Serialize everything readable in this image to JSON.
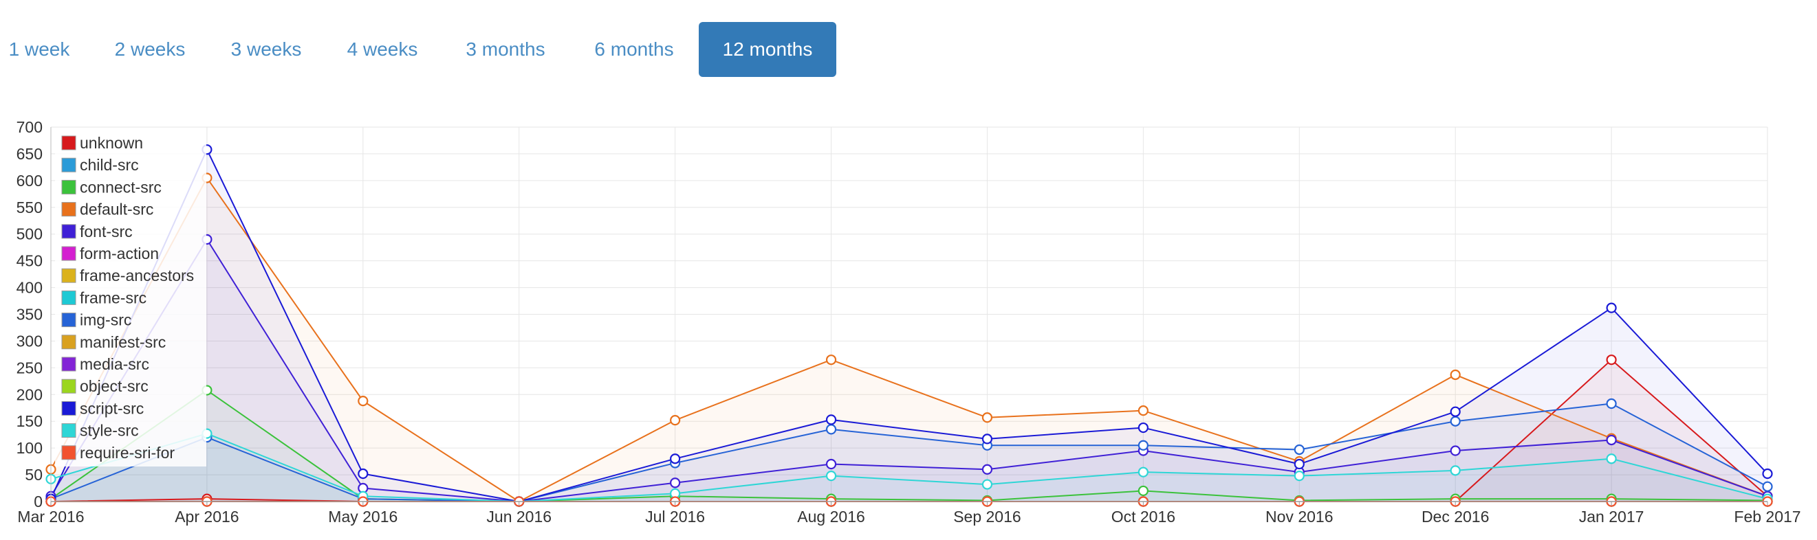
{
  "tabs": [
    {
      "label": "1 week",
      "active": false
    },
    {
      "label": "2 weeks",
      "active": false
    },
    {
      "label": "3 weeks",
      "active": false
    },
    {
      "label": "4 weeks",
      "active": false
    },
    {
      "label": "3 months",
      "active": false
    },
    {
      "label": "6 months",
      "active": false
    },
    {
      "label": "12 months",
      "active": true
    }
  ],
  "chart_data": {
    "type": "line",
    "title": "",
    "xlabel": "",
    "ylabel": "",
    "ylim": [
      0,
      700
    ],
    "y_ticks": [
      0,
      50,
      100,
      150,
      200,
      250,
      300,
      350,
      400,
      450,
      500,
      550,
      600,
      650,
      700
    ],
    "grid": true,
    "legend_position": "top-left",
    "categories": [
      "Mar 2016",
      "Apr 2016",
      "May 2016",
      "Jun 2016",
      "Jul 2016",
      "Aug 2016",
      "Sep 2016",
      "Oct 2016",
      "Nov 2016",
      "Dec 2016",
      "Jan 2017",
      "Feb 2017"
    ],
    "series": [
      {
        "name": "unknown",
        "color": "#d7191c",
        "values": [
          0,
          5,
          0,
          0,
          0,
          0,
          0,
          0,
          0,
          0,
          265,
          10
        ]
      },
      {
        "name": "child-src",
        "color": "#2b9bd8",
        "values": [
          0,
          0,
          0,
          0,
          0,
          0,
          0,
          0,
          0,
          0,
          0,
          0
        ]
      },
      {
        "name": "connect-src",
        "color": "#3bc23b",
        "values": [
          5,
          208,
          5,
          0,
          10,
          5,
          2,
          20,
          2,
          5,
          5,
          2
        ]
      },
      {
        "name": "default-src",
        "color": "#e8711c",
        "values": [
          60,
          605,
          188,
          0,
          152,
          265,
          157,
          170,
          75,
          237,
          118,
          10
        ]
      },
      {
        "name": "font-src",
        "color": "#3f20d6",
        "values": [
          10,
          490,
          25,
          0,
          35,
          70,
          60,
          95,
          55,
          95,
          115,
          10
        ]
      },
      {
        "name": "form-action",
        "color": "#d41fd0",
        "values": [
          0,
          0,
          0,
          0,
          0,
          0,
          0,
          0,
          0,
          0,
          0,
          0
        ]
      },
      {
        "name": "frame-ancestors",
        "color": "#dbb21c",
        "values": [
          0,
          0,
          0,
          0,
          0,
          0,
          0,
          0,
          0,
          0,
          0,
          0
        ]
      },
      {
        "name": "frame-src",
        "color": "#1ec9d4",
        "values": [
          0,
          0,
          0,
          0,
          0,
          0,
          0,
          0,
          0,
          0,
          0,
          0
        ]
      },
      {
        "name": "img-src",
        "color": "#2663d6",
        "values": [
          5,
          120,
          5,
          0,
          72,
          135,
          105,
          105,
          97,
          150,
          183,
          28
        ]
      },
      {
        "name": "manifest-src",
        "color": "#d9a120",
        "values": [
          0,
          0,
          0,
          0,
          0,
          0,
          0,
          0,
          0,
          0,
          0,
          0
        ]
      },
      {
        "name": "media-src",
        "color": "#8324d6",
        "values": [
          0,
          0,
          0,
          0,
          0,
          0,
          0,
          0,
          0,
          0,
          0,
          0
        ]
      },
      {
        "name": "object-src",
        "color": "#9bd61e",
        "values": [
          0,
          0,
          0,
          0,
          0,
          0,
          0,
          0,
          0,
          0,
          0,
          0
        ]
      },
      {
        "name": "script-src",
        "color": "#1a1ad6",
        "values": [
          5,
          658,
          52,
          0,
          80,
          153,
          117,
          138,
          70,
          168,
          362,
          52
        ]
      },
      {
        "name": "style-src",
        "color": "#2ed6d6",
        "values": [
          42,
          127,
          10,
          0,
          15,
          48,
          32,
          55,
          48,
          58,
          80,
          5
        ]
      },
      {
        "name": "require-sri-for",
        "color": "#f2522e",
        "values": [
          0,
          0,
          0,
          0,
          0,
          0,
          0,
          0,
          0,
          0,
          0,
          0
        ]
      }
    ]
  }
}
